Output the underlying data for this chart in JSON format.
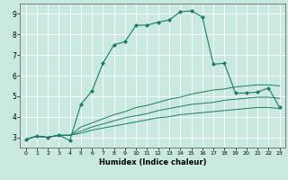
{
  "xlabel": "Humidex (Indice chaleur)",
  "background_color": "#c8e8e0",
  "grid_color": "#ffffff",
  "line_color": "#1a7a6a",
  "xlim": [
    -0.5,
    23.5
  ],
  "ylim": [
    2.5,
    9.5
  ],
  "xticks": [
    0,
    1,
    2,
    3,
    4,
    5,
    6,
    7,
    8,
    9,
    10,
    11,
    12,
    13,
    14,
    15,
    16,
    17,
    18,
    19,
    20,
    21,
    22,
    23
  ],
  "yticks": [
    3,
    4,
    5,
    6,
    7,
    8,
    9
  ],
  "line1_x": [
    0,
    1,
    2,
    3,
    4,
    5,
    6,
    7,
    8,
    9,
    10,
    11,
    12,
    13,
    14,
    15,
    16,
    17,
    18,
    19,
    20,
    21,
    22,
    23
  ],
  "line1_y": [
    2.9,
    3.05,
    3.0,
    3.1,
    2.85,
    4.6,
    5.25,
    6.6,
    7.5,
    7.65,
    8.45,
    8.45,
    8.6,
    8.7,
    9.1,
    9.15,
    8.85,
    6.55,
    6.6,
    5.15,
    5.15,
    5.2,
    5.4,
    4.45
  ],
  "line2_x": [
    0,
    1,
    2,
    3,
    4,
    5,
    6,
    7,
    8,
    9,
    10,
    11,
    12,
    13,
    14,
    15,
    16,
    17,
    18,
    19,
    20,
    21,
    22,
    23
  ],
  "line2_y": [
    2.9,
    3.05,
    3.0,
    3.1,
    3.1,
    3.5,
    3.7,
    3.9,
    4.1,
    4.25,
    4.45,
    4.55,
    4.7,
    4.85,
    4.95,
    5.1,
    5.2,
    5.3,
    5.35,
    5.45,
    5.5,
    5.55,
    5.55,
    5.5
  ],
  "line3_x": [
    0,
    1,
    2,
    3,
    4,
    5,
    6,
    7,
    8,
    9,
    10,
    11,
    12,
    13,
    14,
    15,
    16,
    17,
    18,
    19,
    20,
    21,
    22,
    23
  ],
  "line3_y": [
    2.9,
    3.05,
    3.0,
    3.1,
    3.1,
    3.3,
    3.5,
    3.65,
    3.8,
    3.95,
    4.05,
    4.15,
    4.3,
    4.4,
    4.5,
    4.6,
    4.65,
    4.7,
    4.8,
    4.85,
    4.9,
    4.95,
    4.95,
    4.9
  ],
  "line4_x": [
    0,
    1,
    2,
    3,
    4,
    5,
    6,
    7,
    8,
    9,
    10,
    11,
    12,
    13,
    14,
    15,
    16,
    17,
    18,
    19,
    20,
    21,
    22,
    23
  ],
  "line4_y": [
    2.9,
    3.05,
    3.0,
    3.1,
    3.1,
    3.2,
    3.35,
    3.45,
    3.55,
    3.65,
    3.75,
    3.85,
    3.95,
    4.0,
    4.1,
    4.15,
    4.2,
    4.25,
    4.3,
    4.35,
    4.4,
    4.45,
    4.45,
    4.4
  ]
}
